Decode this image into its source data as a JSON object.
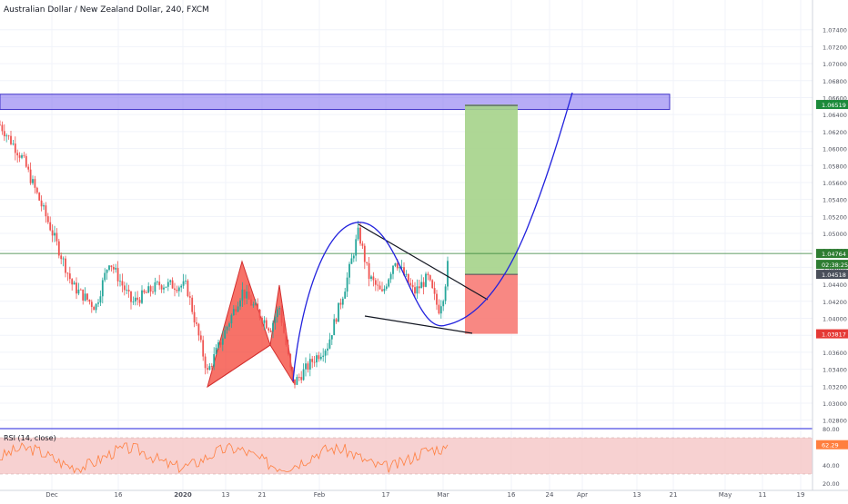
{
  "header": {
    "title": "Australian Dollar / New Zealand Dollar, 240, FXCM"
  },
  "rsi": {
    "label": "RSI (14, close)",
    "value_label": "62.29",
    "upper_label": "80.00",
    "mid_label": "40.00",
    "lower_label": "20.00"
  },
  "price_badges": [
    {
      "value": 1.06519,
      "label": "1.06519",
      "color": "#1b8a3a"
    },
    {
      "value": 1.04764,
      "label": "1.04764",
      "color": "#2e7d32"
    },
    {
      "value": 1.04764,
      "label": "02:38:25",
      "color": "#2e7d32",
      "offset": 1
    },
    {
      "value": 1.04518,
      "label": "1.04518",
      "color": "#4a4f5a"
    },
    {
      "value": 1.03817,
      "label": "1.03817",
      "color": "#e53935"
    }
  ],
  "colors": {
    "bull": "#26a69a",
    "bear": "#ef5350",
    "zone": "#7b68ee",
    "curve": "#2222dd",
    "harmonic": "#f44336",
    "profit": "#a5d38a",
    "loss": "#f77b76",
    "rsi_line": "#ff7f3f",
    "rsi_band": "#f5c6c6"
  },
  "chart_data": {
    "type": "candlestick",
    "symbol": "Australian Dollar / New Zealand Dollar, 240, FXCM",
    "ylim": [
      1.027,
      1.0775
    ],
    "yticks": [
      "1.07400",
      "1.07200",
      "1.07000",
      "1.06800",
      "1.06600",
      "1.06400",
      "1.06200",
      "1.06000",
      "1.05800",
      "1.05600",
      "1.05400",
      "1.05200",
      "1.05000",
      "1.04800",
      "1.04600",
      "1.04400",
      "1.04200",
      "1.04000",
      "1.03800",
      "1.03600",
      "1.03400",
      "1.03200",
      "1.03000",
      "1.02800"
    ],
    "xticks": [
      "Dec",
      "16",
      "2020",
      "13",
      "21",
      "Feb",
      "17",
      "Mar",
      "16",
      "24",
      "Apr",
      "13",
      "21",
      "May",
      "11",
      "19"
    ],
    "resistance_zone": [
      1.0646,
      1.0664
    ],
    "current_price": 1.04764,
    "long_position": {
      "entry": 1.04518,
      "target": 1.06519,
      "stop": 1.03817
    }
  }
}
